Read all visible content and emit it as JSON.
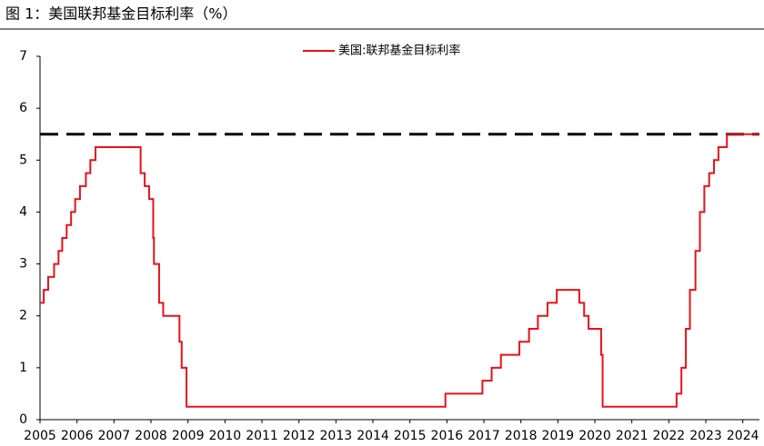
{
  "chart_data": {
    "type": "line",
    "title": "图 1：美国联邦基金目标利率（%）",
    "x": [
      2005.0,
      2005.1,
      2005.1,
      2005.22,
      2005.22,
      2005.38,
      2005.38,
      2005.5,
      2005.5,
      2005.6,
      2005.6,
      2005.72,
      2005.72,
      2005.84,
      2005.84,
      2005.95,
      2005.95,
      2006.08,
      2006.08,
      2006.24,
      2006.24,
      2006.36,
      2006.36,
      2006.5,
      2006.5,
      2007.72,
      2007.72,
      2007.83,
      2007.83,
      2007.95,
      2007.95,
      2008.06,
      2008.06,
      2008.08,
      2008.08,
      2008.22,
      2008.22,
      2008.33,
      2008.33,
      2008.77,
      2008.77,
      2008.83,
      2008.83,
      2008.96,
      2008.96,
      2015.96,
      2015.96,
      2016.96,
      2016.96,
      2017.21,
      2017.21,
      2017.46,
      2017.46,
      2017.96,
      2017.96,
      2018.22,
      2018.22,
      2018.46,
      2018.46,
      2018.72,
      2018.72,
      2018.97,
      2018.97,
      2019.58,
      2019.58,
      2019.71,
      2019.71,
      2019.83,
      2019.83,
      2020.17,
      2020.17,
      2020.21,
      2020.21,
      2022.21,
      2022.21,
      2022.34,
      2022.34,
      2022.46,
      2022.46,
      2022.57,
      2022.57,
      2022.72,
      2022.72,
      2022.84,
      2022.84,
      2022.96,
      2022.96,
      2023.09,
      2023.09,
      2023.22,
      2023.22,
      2023.34,
      2023.34,
      2023.57,
      2023.57,
      2024.45
    ],
    "series": [
      {
        "name": "美国:联邦基金目标利率",
        "color": "#e8121b",
        "values": [
          2.25,
          2.25,
          2.5,
          2.5,
          2.75,
          2.75,
          3.0,
          3.0,
          3.25,
          3.25,
          3.5,
          3.5,
          3.75,
          3.75,
          4.0,
          4.0,
          4.25,
          4.25,
          4.5,
          4.5,
          4.75,
          4.75,
          5.0,
          5.0,
          5.25,
          5.25,
          4.75,
          4.75,
          4.5,
          4.5,
          4.25,
          4.25,
          3.5,
          3.5,
          3.0,
          3.0,
          2.25,
          2.25,
          2.0,
          2.0,
          1.5,
          1.5,
          1.0,
          1.0,
          0.25,
          0.25,
          0.5,
          0.5,
          0.75,
          0.75,
          1.0,
          1.0,
          1.25,
          1.25,
          1.5,
          1.5,
          1.75,
          1.75,
          2.0,
          2.0,
          2.25,
          2.25,
          2.5,
          2.5,
          2.25,
          2.25,
          2.0,
          2.0,
          1.75,
          1.75,
          1.25,
          1.25,
          0.25,
          0.25,
          0.5,
          0.5,
          1.0,
          1.0,
          1.75,
          1.75,
          2.5,
          2.5,
          3.25,
          3.25,
          4.0,
          4.0,
          4.5,
          4.5,
          4.75,
          4.75,
          5.0,
          5.0,
          5.25,
          5.25,
          5.5,
          5.5
        ]
      }
    ],
    "reference_line": 5.5,
    "reference_color": "#000000",
    "xlim": [
      2005,
      2024.45
    ],
    "xticks": [
      2005,
      2006,
      2007,
      2008,
      2009,
      2010,
      2011,
      2012,
      2013,
      2014,
      2015,
      2016,
      2017,
      2018,
      2019,
      2020,
      2021,
      2022,
      2023,
      2024
    ],
    "ylim": [
      0,
      7
    ],
    "yticks": [
      0,
      1,
      2,
      3,
      4,
      5,
      6,
      7
    ]
  }
}
